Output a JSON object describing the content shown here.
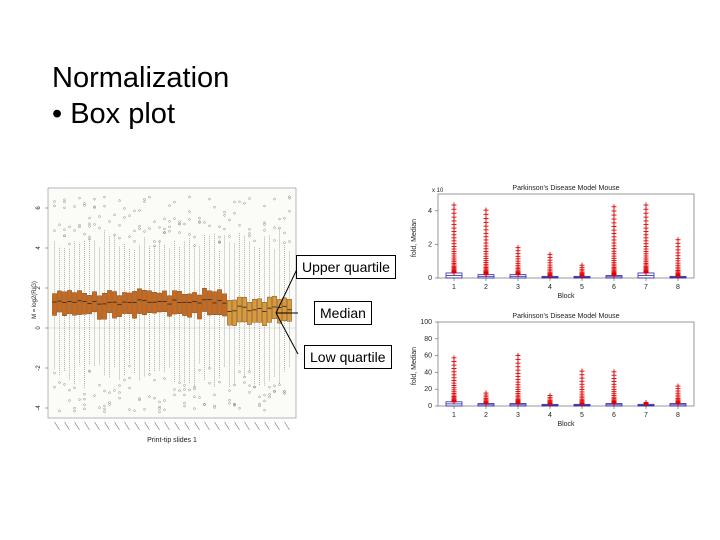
{
  "slide": {
    "title": "Normalization",
    "bullet": "• Box plot"
  },
  "callouts": {
    "upper": "Upper quartile",
    "median": "Median",
    "low": "Low quartile"
  },
  "colors": {
    "box_fill": "#c86a1e",
    "box_fill_light": "#d99a3a",
    "outlier_red": "#e00000",
    "box_blue": "#2a2aa8",
    "plot_bg": "#fbfbf7"
  },
  "chart_data": [
    {
      "type": "boxplot",
      "title": "",
      "xlabel": "Print-tip slides 1",
      "ylabel": "M = log2(R/G)",
      "ylim": [
        -4.5,
        7
      ],
      "yticks": [
        "-4",
        "-2",
        "0",
        "2",
        "4",
        "6"
      ],
      "n_boxes": 48,
      "box_median_approx": 1.3,
      "box_q1_approx": 0.8,
      "box_q3_approx": 1.7
    },
    {
      "type": "boxplot",
      "title": "Parkinson's Disease Model Mouse",
      "xlabel": "Block",
      "ylabel": "fold, Median",
      "y_multiplier": "x 10",
      "ylim": [
        0,
        5
      ],
      "yticks": [
        "0",
        "2",
        "4"
      ],
      "categories": [
        "1",
        "2",
        "3",
        "4",
        "5",
        "6",
        "7",
        "8"
      ],
      "q3_values": [
        0.3,
        0.2,
        0.2,
        0.1,
        0.1,
        0.15,
        0.3,
        0.1
      ],
      "outlier_max": [
        4.6,
        4.3,
        2.0,
        1.6,
        0.9,
        4.5,
        4.6,
        2.5
      ]
    },
    {
      "type": "boxplot",
      "title": "Parkinson's Disease Model Mouse",
      "xlabel": "Block",
      "ylabel": "fold, Median",
      "ylim": [
        0,
        100
      ],
      "yticks": [
        "0",
        "20",
        "40",
        "60",
        "80",
        "100"
      ],
      "categories": [
        "1",
        "2",
        "3",
        "4",
        "5",
        "6",
        "7",
        "8"
      ],
      "q3_values": [
        5,
        3,
        3,
        2,
        2,
        3,
        2,
        3
      ],
      "outlier_max": [
        62,
        18,
        65,
        15,
        46,
        45,
        5,
        27
      ]
    }
  ]
}
